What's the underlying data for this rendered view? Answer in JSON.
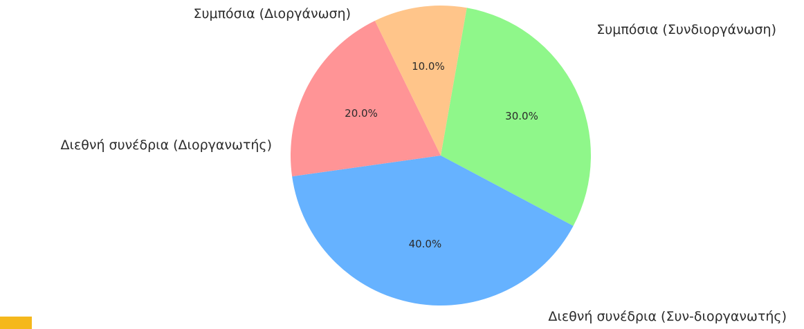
{
  "chart_data": {
    "type": "pie",
    "title": "",
    "slices": [
      {
        "label": "Συμπόσια (Συνδιοργάνωση)",
        "value": 30.0,
        "pct_label": "30.0%",
        "color": "#8ff78a"
      },
      {
        "label": "Διεθνή συνέδρια (Συν-διοργανωτής)",
        "value": 40.0,
        "pct_label": "40.0%",
        "color": "#66b2ff"
      },
      {
        "label": "Διεθνή συνέδρια (Διοργανωτής)",
        "value": 20.0,
        "pct_label": "20.0%",
        "color": "#ff9496"
      },
      {
        "label": "Συμπόσια (Διοργάνωση)",
        "value": 10.0,
        "pct_label": "10.0%",
        "color": "#ffc58a"
      }
    ],
    "start_angle_deg": 80,
    "direction": "clockwise",
    "legend": "none"
  },
  "colors": {
    "corner_accent": "#f5b81c"
  }
}
